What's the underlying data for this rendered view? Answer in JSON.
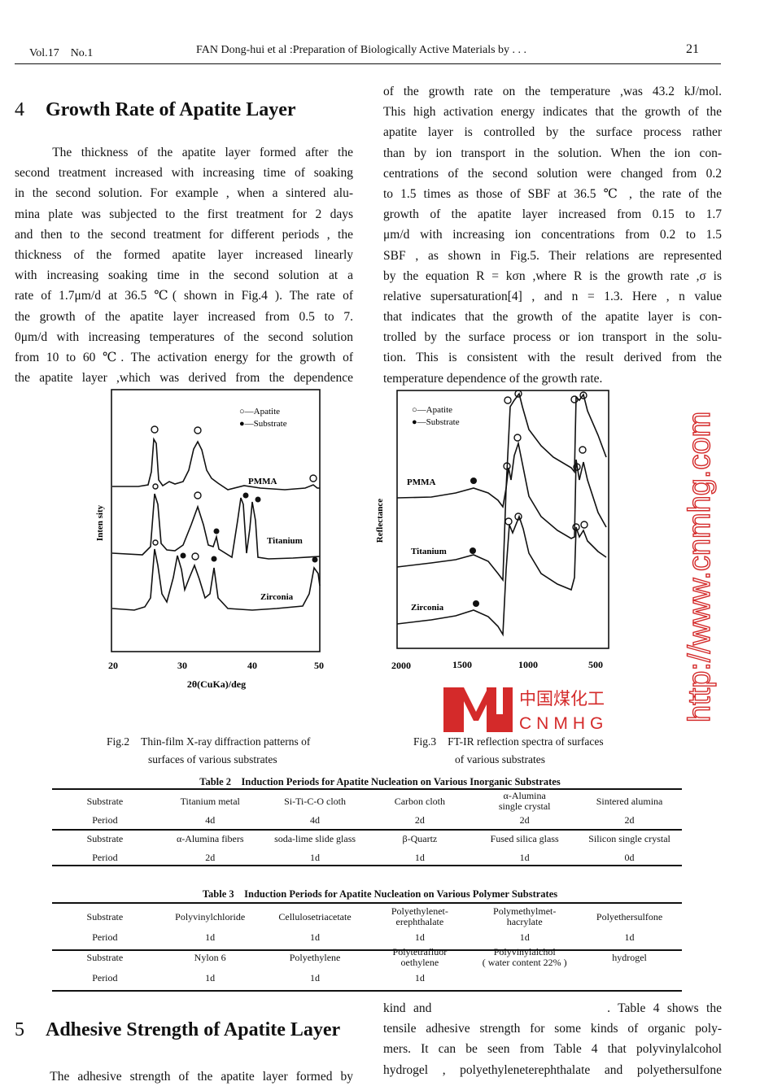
{
  "header": {
    "volume": "Vol.17　No.1",
    "running_title": "FAN Dong-hui et al :Preparation of Biologically Active Materials by . . .",
    "page_number": "21"
  },
  "section4": {
    "number": "4",
    "title": "Growth Rate of Apatite Layer"
  },
  "left_lines": [
    "　　The thickness of the apatite layer formed after the",
    "second treatment increased with increasing time of soaking",
    "in the second solution. For example , when a sintered alu-",
    "mina plate was subjected to the first treatment for 2 days",
    "and then to the second treatment for different periods , the",
    "thickness of the formed apatite layer increased linearly",
    "with increasing soaking time in the second solution at a",
    "rate of 1.7μm/d at 36.5 ℃( shown in Fig.4 ). The rate of",
    "the growth of the apatite layer increased from 0.5 to 7.",
    "0μm/d with increasing temperatures of the second solution",
    "from 10 to 60 ℃. The activation energy for the growth of",
    "the apatite layer ,which was derived from the dependence"
  ],
  "right_lines": [
    "of the growth rate on the temperature ,was 43.2 kJ/mol.",
    "This high activation energy indicates that the growth of the",
    "apatite layer is controlled by the surface process rather",
    "than by ion transport in the solution. When the ion con-",
    "centrations of the second solution were changed from 0.2",
    "to 1.5 times as those of SBF at 36.5 ℃ , the rate of the",
    "growth of the apatite layer increased from 0.15 to 1.7",
    "μm/d with increasing ion concentrations from 0.2 to 1.5",
    "SBF , as shown in Fig.5. Their relations are represented",
    "by the equation R = kσn ,where R is the growth rate ,σ is",
    "relative supersaturation[4] , and n = 1.3. Here , n value",
    "that indicates that the growth of the apatite layer is con-",
    "trolled by the surface process or ion transport in the solu-",
    "tion. This is consistent with the result derived from the",
    "temperature dependence of the growth rate."
  ],
  "fig2": {
    "caption_label": "Fig.2",
    "caption_line1": "Thin-film X-ray diffraction patterns of",
    "caption_line2": "surfaces of various substrates",
    "ylabel": "Inten sity",
    "xlabel": "2θ(CuKa)/deg",
    "xticks": [
      "20",
      "30",
      "40",
      "50"
    ],
    "legend_apatite": "○—Apatite",
    "legend_substrate": "●—Substrate",
    "series": [
      "PMMA",
      "Titanium",
      "Zirconia"
    ]
  },
  "fig3": {
    "caption_label": "Fig.3",
    "caption_line1": "FT-IR reflection spectra of surfaces",
    "caption_line2": "of various substrates",
    "ylabel": "Reflectance",
    "xticks": [
      "2000",
      "1500",
      "1000",
      "500"
    ],
    "legend_apatite": "○—Apatite",
    "legend_substrate": "●—Substrate",
    "series": [
      "PMMA",
      "Titanium",
      "Zirconia"
    ]
  },
  "table2": {
    "title": "Table 2　Induction Periods for Apatite Nucleation on Various Inorganic Substrates",
    "rows": [
      [
        "Substrate",
        "Titanium metal",
        "Si-Ti-C-O cloth",
        "Carbon cloth",
        "α-Alumina\nsingle crystal",
        "Sintered alumina"
      ],
      [
        "Period",
        "4d",
        "4d",
        "2d",
        "2d",
        "2d"
      ],
      [
        "Substrate",
        "α-Alumina fibers",
        "soda-lime slide glass",
        "β-Quartz",
        "Fused silica glass",
        "Silicon single crystal"
      ],
      [
        "Period",
        "2d",
        "1d",
        "1d",
        "1d",
        "0d"
      ]
    ]
  },
  "table3": {
    "title": "Table 3　Induction Periods for Apatite Nucleation on Various Polymer Substrates",
    "rows": [
      [
        "Substrate",
        "Polyvinylchloride",
        "Cellulosetriacetate",
        "Polyethylenet-\nerephthalate",
        "Polymethylmet-\nhacrylate",
        "Polyethersulfone"
      ],
      [
        "Period",
        "1d",
        "1d",
        "1d",
        "1d",
        "1d"
      ],
      [
        "Substrate",
        "Nylon 6",
        "Polyethylene",
        "Polytetrafluor\noethylene",
        "Polyvinylalchol\n( water content 22% )",
        "hydrogel"
      ],
      [
        "Period",
        "1d",
        "1d",
        "1d",
        "",
        ""
      ]
    ]
  },
  "section5": {
    "number": "5",
    "title": "Adhesive Strength of Apatite Layer",
    "left_line": "　　The adhesive strength of the apatite layer formed by"
  },
  "right_bottom_lines": [
    "kind and　　　　　　　　　　. Table 4 shows the",
    "tensile adhesive strength for some kinds of organic poly-",
    "mers. It can be seen from Table 4 that polyvinylalcohol",
    "hydrogel , polyethyleneterephthalate and polyethersulfone"
  ],
  "watermark": {
    "url_text": "http://www.cnmhg.com",
    "logo_cn": "中国煤化工",
    "logo_en": "CNMHG",
    "color": "#d42a2a"
  }
}
